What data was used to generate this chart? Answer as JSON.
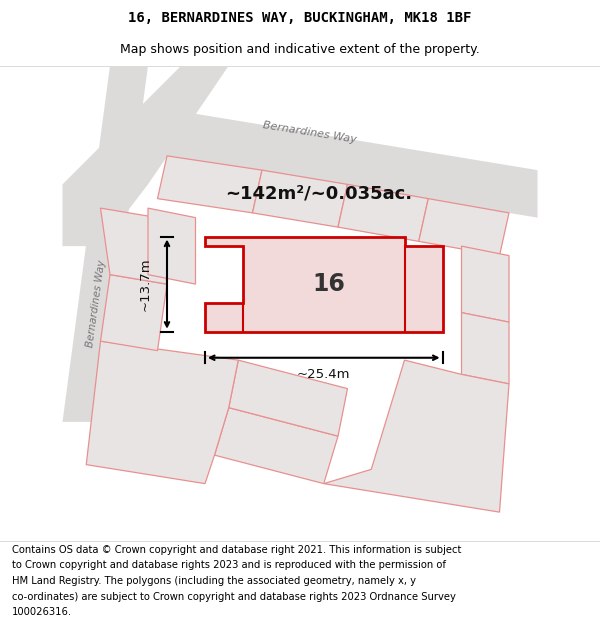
{
  "title_line1": "16, BERNARDINES WAY, BUCKINGHAM, MK18 1BF",
  "title_line2": "Map shows position and indicative extent of the property.",
  "footer_lines": [
    "Contains OS data © Crown copyright and database right 2021. This information is subject",
    "to Crown copyright and database rights 2023 and is reproduced with the permission of",
    "HM Land Registry. The polygons (including the associated geometry, namely x, y",
    "co-ordinates) are subject to Crown copyright and database rights 2023 Ordnance Survey",
    "100026316."
  ],
  "area_text": "~142m²/~0.035ac.",
  "measurement_width": "~25.4m",
  "measurement_height": "~13.7m",
  "plot_number": "16",
  "map_bg": "#eeecec",
  "plot_outline_color": "#cc0000",
  "neighbor_outline_color": "#e89090",
  "neighbor_fill": "#e8e4e4",
  "road_fill": "#dddada",
  "title_fontsize": 10,
  "footer_fontsize": 7.2
}
